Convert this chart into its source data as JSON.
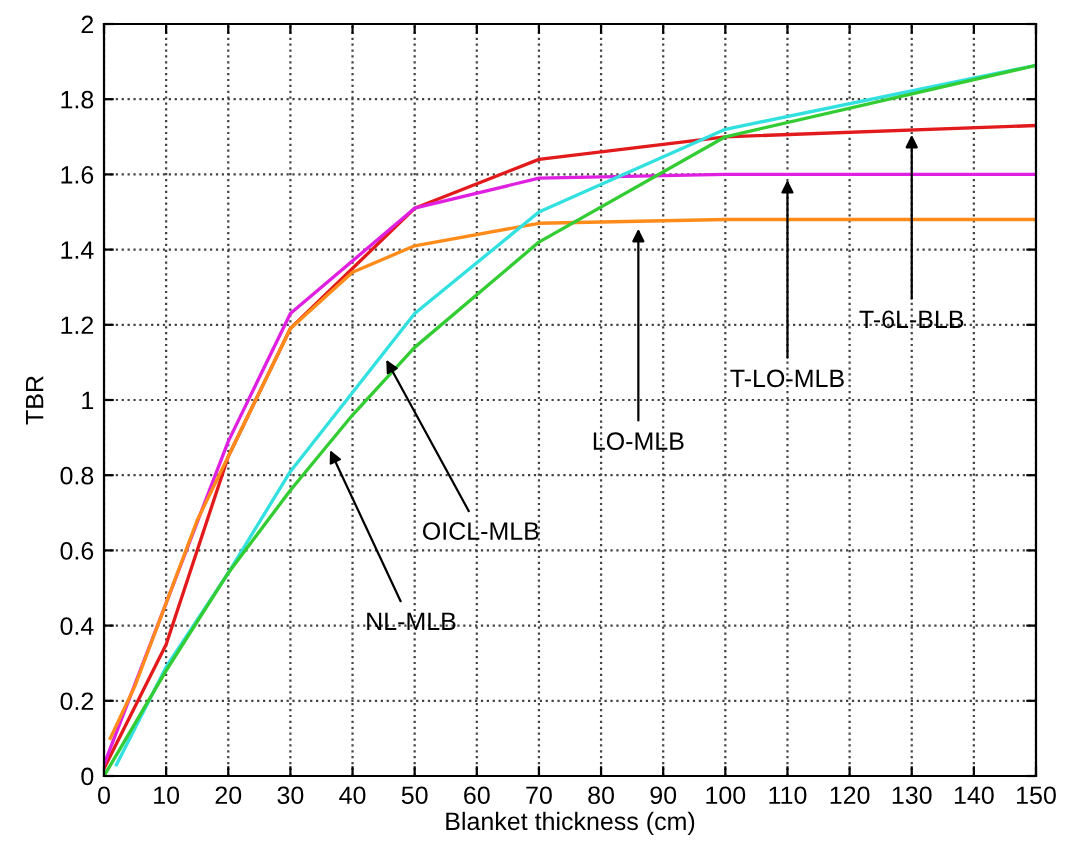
{
  "chart_data": {
    "type": "line",
    "xlabel": "Blanket thickness (cm)",
    "ylabel": "TBR",
    "xlim": [
      0,
      150
    ],
    "ylim": [
      0,
      2
    ],
    "xticks": [
      0,
      10,
      20,
      30,
      40,
      50,
      60,
      70,
      80,
      90,
      100,
      110,
      120,
      130,
      140,
      150
    ],
    "yticks": [
      0,
      0.2,
      0.4,
      0.6,
      0.8,
      1,
      1.2,
      1.4,
      1.6,
      1.8,
      2
    ],
    "grid": true,
    "line_style": "solid",
    "series": [
      {
        "color": "#e31a1c",
        "x": [
          0,
          10,
          20,
          30,
          50,
          70,
          100,
          150
        ],
        "values": [
          0.02,
          0.35,
          0.85,
          1.19,
          1.51,
          1.64,
          1.7,
          1.73
        ]
      },
      {
        "color": "#e020e0",
        "x": [
          0,
          10,
          20,
          30,
          50,
          70,
          100,
          150
        ],
        "values": [
          0.03,
          0.46,
          0.89,
          1.23,
          1.51,
          1.59,
          1.6,
          1.6
        ]
      },
      {
        "color": "#ff8c1a",
        "x": [
          1,
          5,
          15,
          30,
          40,
          50,
          70,
          100,
          150
        ],
        "values": [
          0.1,
          0.24,
          0.68,
          1.19,
          1.34,
          1.41,
          1.47,
          1.48,
          1.48
        ]
      },
      {
        "color": "#33e0e0",
        "x": [
          2,
          10,
          20,
          30,
          50,
          70,
          100,
          150
        ],
        "values": [
          0.03,
          0.29,
          0.54,
          0.81,
          1.23,
          1.5,
          1.72,
          1.89
        ]
      },
      {
        "color": "#33cc33",
        "x": [
          0,
          5,
          10,
          20,
          30,
          40,
          50,
          70,
          100,
          150
        ],
        "values": [
          0.0,
          0.14,
          0.28,
          0.54,
          0.76,
          0.96,
          1.14,
          1.42,
          1.7,
          1.89
        ]
      }
    ],
    "annotations": [
      {
        "text": "LO-MLB",
        "x": 86,
        "y": 1.47
      },
      {
        "text": "T-LO-MLB",
        "x": 110,
        "y": 1.6
      },
      {
        "text": "T-6L-BLB",
        "x": 130,
        "y": 1.72
      },
      {
        "text": "OICL-MLB",
        "x": 45,
        "y": 1.12
      },
      {
        "text": "NL-MLB",
        "x": 36,
        "y": 0.88
      }
    ]
  }
}
